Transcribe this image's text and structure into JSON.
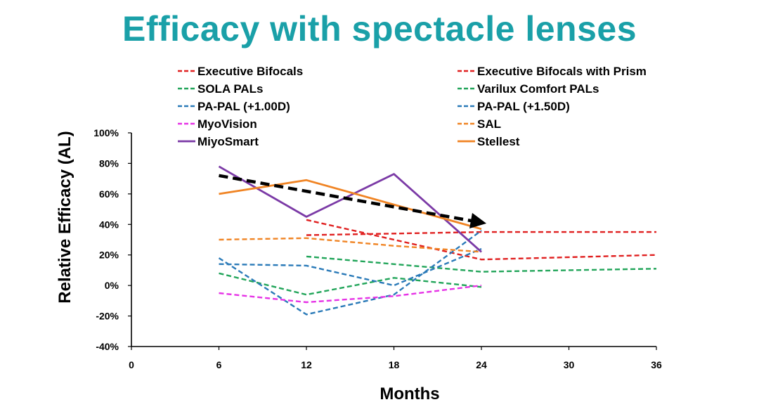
{
  "chart_data": {
    "type": "line",
    "title": "Efficacy with spectacle lenses",
    "xlabel": "Months",
    "ylabel": "Relative Efficacy (AL)",
    "xlim": [
      0,
      36
    ],
    "ylim": [
      -40,
      100
    ],
    "x_ticks": [
      "0",
      "6",
      "12",
      "18",
      "24",
      "30",
      "36"
    ],
    "y_ticks": [
      "-40%",
      "-20%",
      "0%",
      "20%",
      "40%",
      "60%",
      "80%",
      "100%"
    ],
    "grid": false,
    "legend_position": "top",
    "series": [
      {
        "name": "Executive Bifocals",
        "color": "#e02020",
        "dash": true,
        "points": [
          [
            12,
            43
          ],
          [
            24,
            17
          ],
          [
            36,
            20
          ]
        ]
      },
      {
        "name": "Executive Bifocals with Prism",
        "color": "#e02020",
        "dash": true,
        "points": [
          [
            12,
            33
          ],
          [
            24,
            35
          ],
          [
            36,
            35
          ]
        ]
      },
      {
        "name": "SOLA PALs",
        "color": "#22a55a",
        "dash": true,
        "points": [
          [
            12,
            19
          ],
          [
            24,
            9
          ],
          [
            36,
            11
          ]
        ]
      },
      {
        "name": "Varilux Comfort PALs",
        "color": "#22a55a",
        "dash": true,
        "points": [
          [
            6,
            8
          ],
          [
            12,
            -6
          ],
          [
            18,
            5
          ],
          [
            24,
            -1
          ]
        ]
      },
      {
        "name": "PA-PAL (+1.00D)",
        "color": "#2a7ab8",
        "dash": true,
        "points": [
          [
            6,
            14
          ],
          [
            12,
            13
          ],
          [
            18,
            0
          ],
          [
            24,
            24
          ]
        ]
      },
      {
        "name": "PA-PAL (+1.50D)",
        "color": "#2a7ab8",
        "dash": true,
        "points": [
          [
            6,
            18
          ],
          [
            12,
            -19
          ],
          [
            18,
            -6
          ],
          [
            24,
            36
          ]
        ]
      },
      {
        "name": "MyoVision",
        "color": "#e633e6",
        "dash": true,
        "points": [
          [
            6,
            -5
          ],
          [
            12,
            -11
          ],
          [
            18,
            -7
          ],
          [
            24,
            0
          ]
        ]
      },
      {
        "name": "SAL",
        "color": "#f08424",
        "dash": true,
        "points": [
          [
            6,
            30
          ],
          [
            12,
            31
          ],
          [
            18,
            26
          ],
          [
            24,
            22
          ]
        ]
      },
      {
        "name": "MiyoSmart",
        "color": "#7b3aa6",
        "dash": false,
        "points": [
          [
            6,
            78
          ],
          [
            12,
            45
          ],
          [
            18,
            73
          ],
          [
            24,
            22
          ]
        ]
      },
      {
        "name": "Stellest",
        "color": "#f08424",
        "dash": false,
        "points": [
          [
            6,
            60
          ],
          [
            12,
            69
          ],
          [
            18,
            53
          ],
          [
            24,
            37
          ]
        ]
      }
    ],
    "trend_arrow": {
      "color": "#000000",
      "from": [
        6,
        72
      ],
      "to": [
        24,
        42
      ]
    }
  }
}
